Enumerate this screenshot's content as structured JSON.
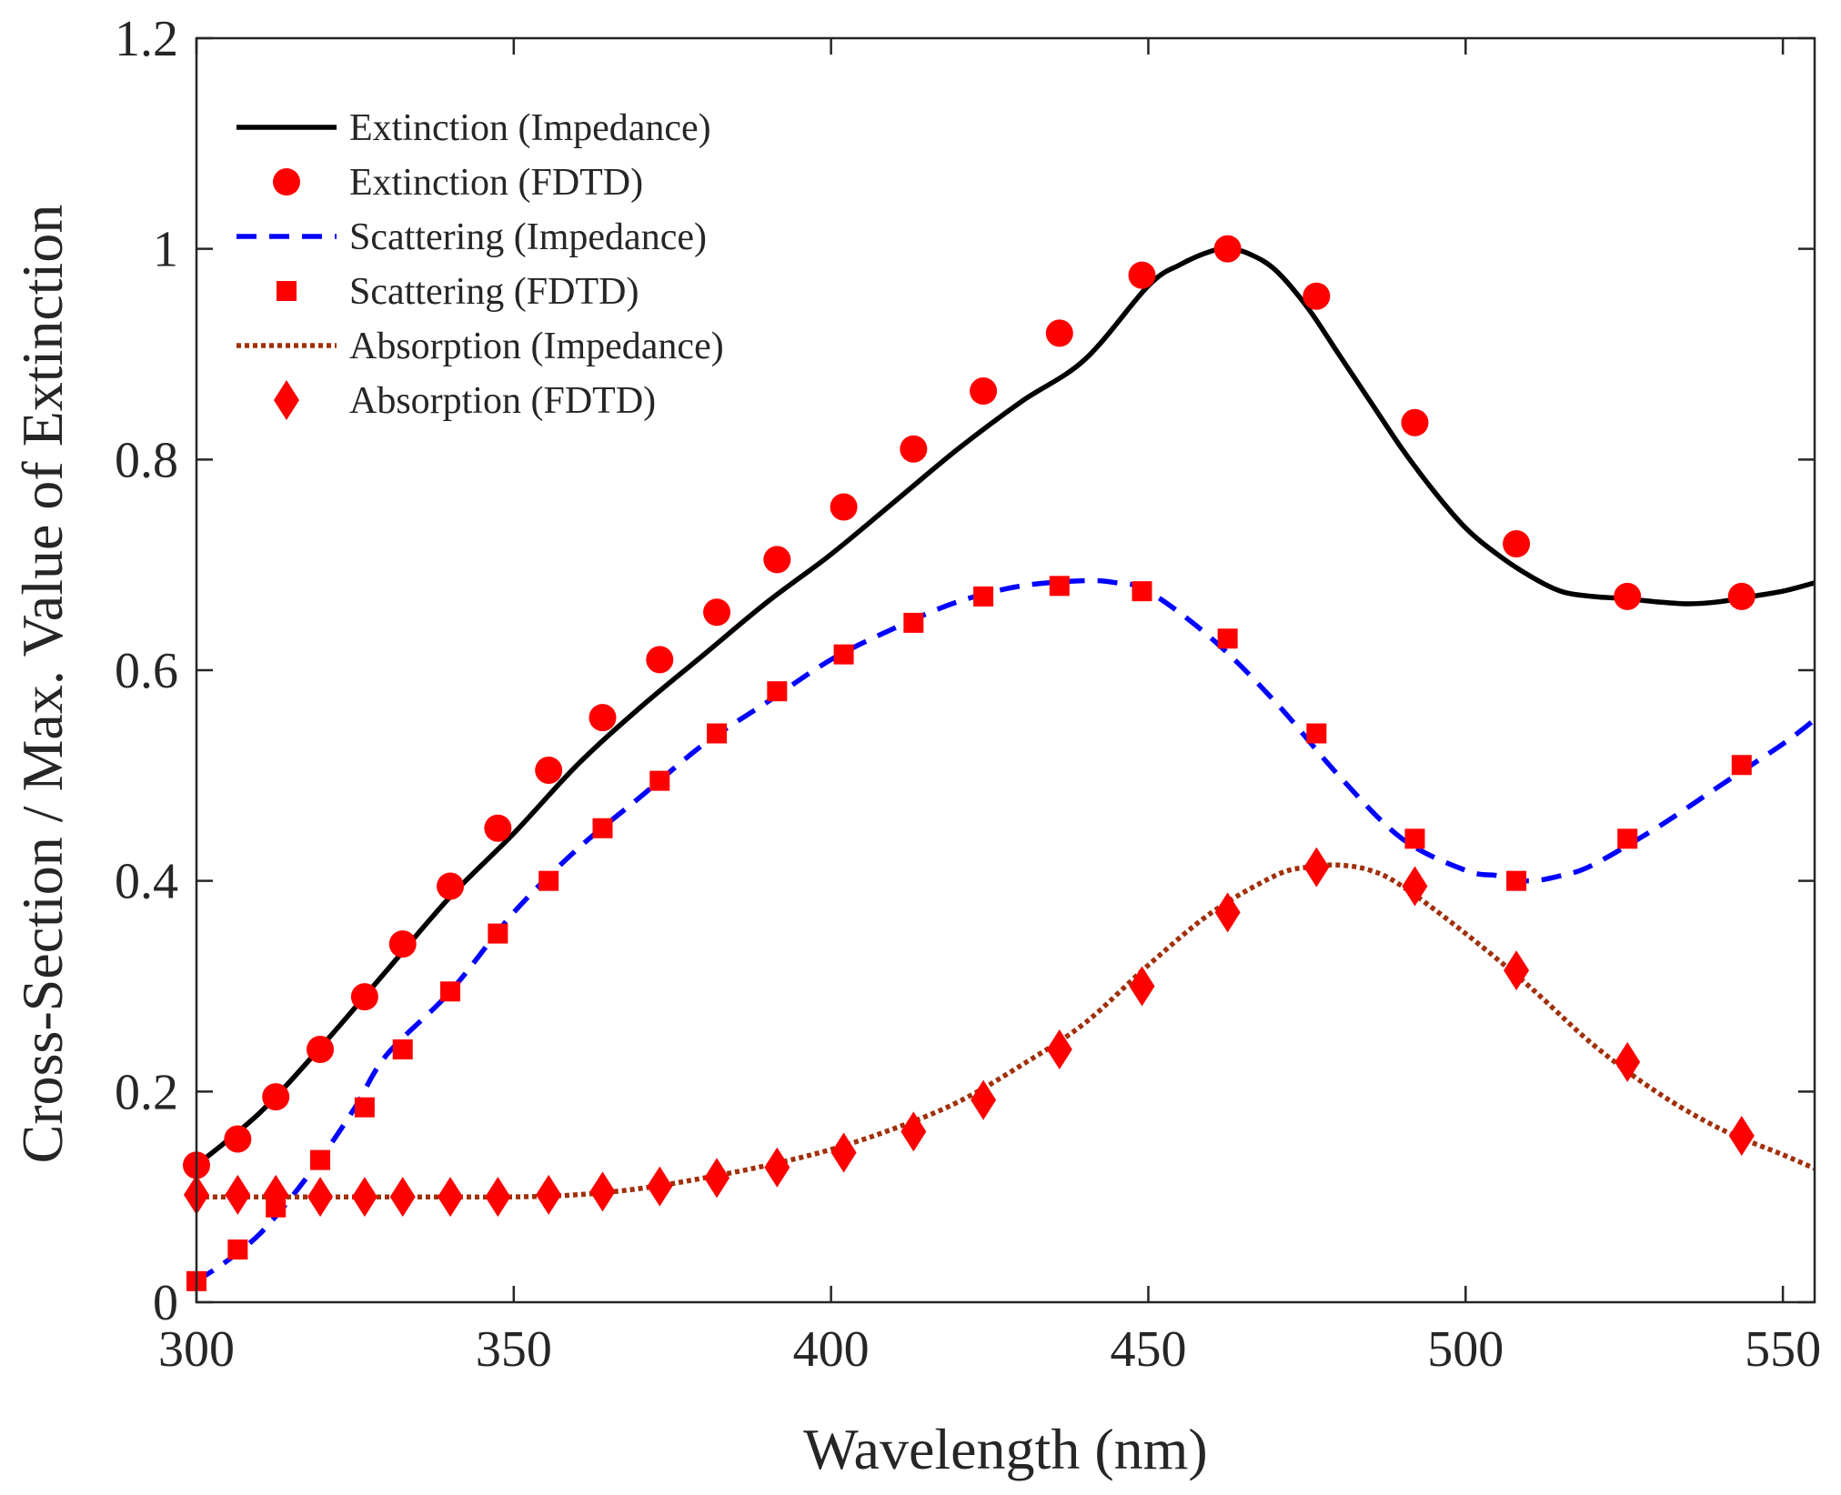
{
  "chart_data": {
    "type": "line",
    "title": "",
    "xlabel": "Wavelength (nm)",
    "ylabel": "Cross-Section / Max. Value of Extinction",
    "xlim": [
      300,
      555
    ],
    "ylim": [
      0,
      1.2
    ],
    "xticks": [
      300,
      350,
      400,
      450,
      500,
      550
    ],
    "xtick_labels": [
      "300",
      "350",
      "400",
      "450",
      "500",
      "550"
    ],
    "yticks": [
      0,
      0.2,
      0.4,
      0.6,
      0.8,
      1.0,
      1.2
    ],
    "ytick_labels": [
      "0",
      "0.2",
      "0.4",
      "0.6",
      "0.8",
      "1",
      "1.2"
    ],
    "legend_position": "top-left",
    "series": [
      {
        "name": "Extinction (Impedance)",
        "style": "solid",
        "color": "#000000",
        "x": [
          300,
          310,
          320,
          330,
          340,
          350,
          360,
          370,
          380,
          390,
          400,
          410,
          420,
          430,
          440,
          450,
          455,
          460,
          463,
          466,
          470,
          475,
          480,
          485,
          490,
          495,
          500,
          505,
          510,
          515,
          520,
          525,
          530,
          535,
          540,
          545,
          550,
          555
        ],
        "y": [
          0.13,
          0.18,
          0.245,
          0.315,
          0.385,
          0.445,
          0.51,
          0.565,
          0.615,
          0.665,
          0.71,
          0.76,
          0.81,
          0.855,
          0.895,
          0.965,
          0.985,
          0.998,
          1.0,
          0.995,
          0.98,
          0.945,
          0.9,
          0.855,
          0.81,
          0.77,
          0.735,
          0.71,
          0.69,
          0.675,
          0.67,
          0.668,
          0.665,
          0.663,
          0.665,
          0.67,
          0.675,
          0.683
        ]
      },
      {
        "name": "Extinction (FDTD)",
        "style": "circle",
        "color": "#ff0000",
        "x": [
          300,
          306.5,
          312.5,
          319.5,
          326.5,
          332.5,
          340,
          347.5,
          355.5,
          364,
          373,
          382,
          391.5,
          402,
          413,
          424,
          436,
          449,
          462.5,
          476.5,
          492,
          508,
          525.5,
          543.5
        ],
        "y": [
          0.13,
          0.155,
          0.195,
          0.24,
          0.29,
          0.34,
          0.395,
          0.45,
          0.505,
          0.555,
          0.61,
          0.655,
          0.705,
          0.755,
          0.81,
          0.865,
          0.92,
          0.975,
          1.0,
          0.955,
          0.835,
          0.72,
          0.67,
          0.67
        ]
      },
      {
        "name": "Scattering (Impedance)",
        "style": "dashed",
        "color": "#0000ff",
        "x": [
          300,
          305,
          310,
          315,
          320,
          325,
          330,
          340,
          350,
          360,
          370,
          380,
          390,
          400,
          410,
          420,
          430,
          440,
          445,
          450,
          460,
          470,
          480,
          490,
          500,
          505,
          510,
          515,
          520,
          530,
          540,
          550,
          555
        ],
        "y": [
          0.02,
          0.04,
          0.065,
          0.1,
          0.14,
          0.185,
          0.235,
          0.295,
          0.37,
          0.43,
          0.48,
          0.53,
          0.57,
          0.61,
          0.64,
          0.665,
          0.68,
          0.685,
          0.683,
          0.675,
          0.63,
          0.57,
          0.5,
          0.44,
          0.41,
          0.405,
          0.4,
          0.405,
          0.415,
          0.45,
          0.49,
          0.53,
          0.553
        ]
      },
      {
        "name": "Scattering (FDTD)",
        "style": "square",
        "color": "#ff0000",
        "x": [
          300,
          306.5,
          312.5,
          319.5,
          326.5,
          332.5,
          340,
          347.5,
          355.5,
          364,
          373,
          382,
          391.5,
          402,
          413,
          424,
          436,
          449,
          462.5,
          476.5,
          492,
          508,
          525.5,
          543.5
        ],
        "y": [
          0.02,
          0.05,
          0.09,
          0.135,
          0.185,
          0.24,
          0.295,
          0.35,
          0.4,
          0.45,
          0.495,
          0.54,
          0.58,
          0.615,
          0.645,
          0.67,
          0.68,
          0.675,
          0.63,
          0.54,
          0.44,
          0.4,
          0.44,
          0.51
        ]
      },
      {
        "name": "Absorption (Impedance)",
        "style": "dotted",
        "color": "#a0300a",
        "x": [
          300,
          310,
          320,
          330,
          340,
          350,
          360,
          370,
          380,
          390,
          400,
          410,
          420,
          430,
          440,
          450,
          460,
          470,
          475,
          480,
          485,
          490,
          500,
          510,
          520,
          530,
          540,
          550,
          555
        ],
        "y": [
          0.1,
          0.1,
          0.1,
          0.1,
          0.1,
          0.1,
          0.102,
          0.108,
          0.118,
          0.13,
          0.145,
          0.165,
          0.19,
          0.225,
          0.265,
          0.32,
          0.37,
          0.405,
          0.413,
          0.415,
          0.41,
          0.395,
          0.35,
          0.3,
          0.245,
          0.2,
          0.165,
          0.14,
          0.127
        ]
      },
      {
        "name": "Absorption (FDTD)",
        "style": "diamond",
        "color": "#ff0000",
        "x": [
          300,
          306.5,
          312.5,
          319.5,
          326.5,
          332.5,
          340,
          347.5,
          355.5,
          364,
          373,
          382,
          391.5,
          402,
          413,
          424,
          436,
          449,
          462.5,
          476.5,
          492,
          508,
          525.5,
          543.5
        ],
        "y": [
          0.102,
          0.102,
          0.102,
          0.1,
          0.1,
          0.1,
          0.1,
          0.1,
          0.102,
          0.105,
          0.11,
          0.118,
          0.128,
          0.142,
          0.162,
          0.192,
          0.24,
          0.3,
          0.37,
          0.413,
          0.395,
          0.315,
          0.228,
          0.158
        ]
      }
    ]
  }
}
